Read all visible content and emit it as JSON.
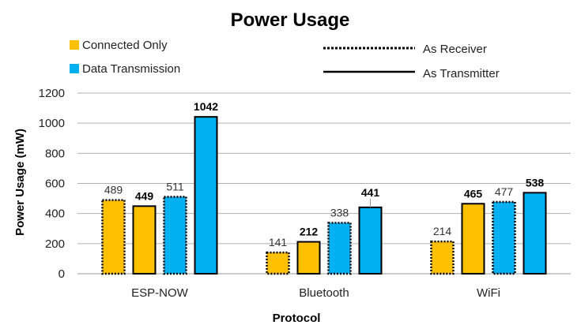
{
  "chart_data": {
    "type": "bar",
    "title": "Power Usage",
    "xlabel": "Protocol",
    "ylabel": "Power Usage (mW)",
    "ylim": [
      0,
      1200
    ],
    "yticks": [
      "0",
      "200",
      "400",
      "600",
      "800",
      "1000",
      "1200"
    ],
    "grid": true,
    "categories": [
      "ESP-NOW",
      "Bluetooth",
      "WiFi"
    ],
    "legend": {
      "fill": [
        {
          "label": "Connected Only",
          "color": "#FFC000"
        },
        {
          "label": "Data Transmission",
          "color": "#00B0F0"
        }
      ],
      "border": [
        {
          "label": "As Receiver",
          "style": "dotted"
        },
        {
          "label": "As Transmitter",
          "style": "solid"
        }
      ]
    },
    "series": [
      {
        "name": "Connected Only As Receiver",
        "color": "#FFC000",
        "border": "dotted",
        "values": [
          489,
          141,
          214
        ]
      },
      {
        "name": "Connected Only As Transmitter",
        "color": "#FFC000",
        "border": "solid",
        "values": [
          449,
          212,
          465
        ]
      },
      {
        "name": "Data Transmission As Receiver",
        "color": "#00B0F0",
        "border": "dotted",
        "values": [
          511,
          338,
          477
        ]
      },
      {
        "name": "Data Transmission As Transmitter",
        "color": "#00B0F0",
        "border": "solid",
        "values": [
          1042,
          441,
          538
        ]
      }
    ],
    "data_labels": [
      [
        "489",
        "141",
        "214"
      ],
      [
        "449",
        "212",
        "465"
      ],
      [
        "511",
        "338",
        "477"
      ],
      [
        "1042",
        "441",
        "538"
      ]
    ]
  }
}
